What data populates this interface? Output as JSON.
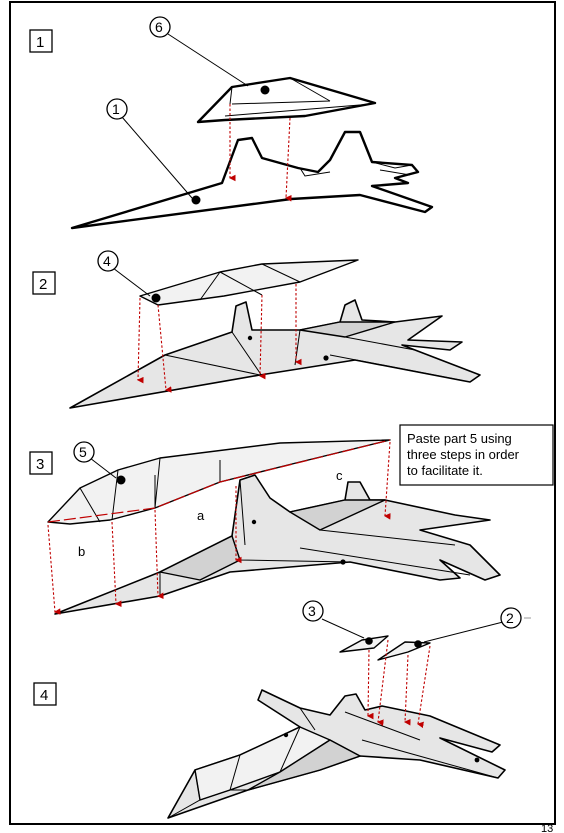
{
  "steps": [
    {
      "label": "1"
    },
    {
      "label": "2"
    },
    {
      "label": "3"
    },
    {
      "label": "4"
    }
  ],
  "parts": {
    "p1": "1",
    "p2": "2",
    "p3": "3",
    "p4": "4",
    "p5": "5",
    "p6": "6"
  },
  "segments": {
    "a": "a",
    "b": "b",
    "c": "c"
  },
  "note": {
    "line1": "Paste part 5 using",
    "line2": "three steps  in order",
    "line3": "to facilitate it."
  },
  "page_number": "13",
  "colors": {
    "guide_arrow": "#c00000",
    "paper_part": "#e6e6e6"
  }
}
